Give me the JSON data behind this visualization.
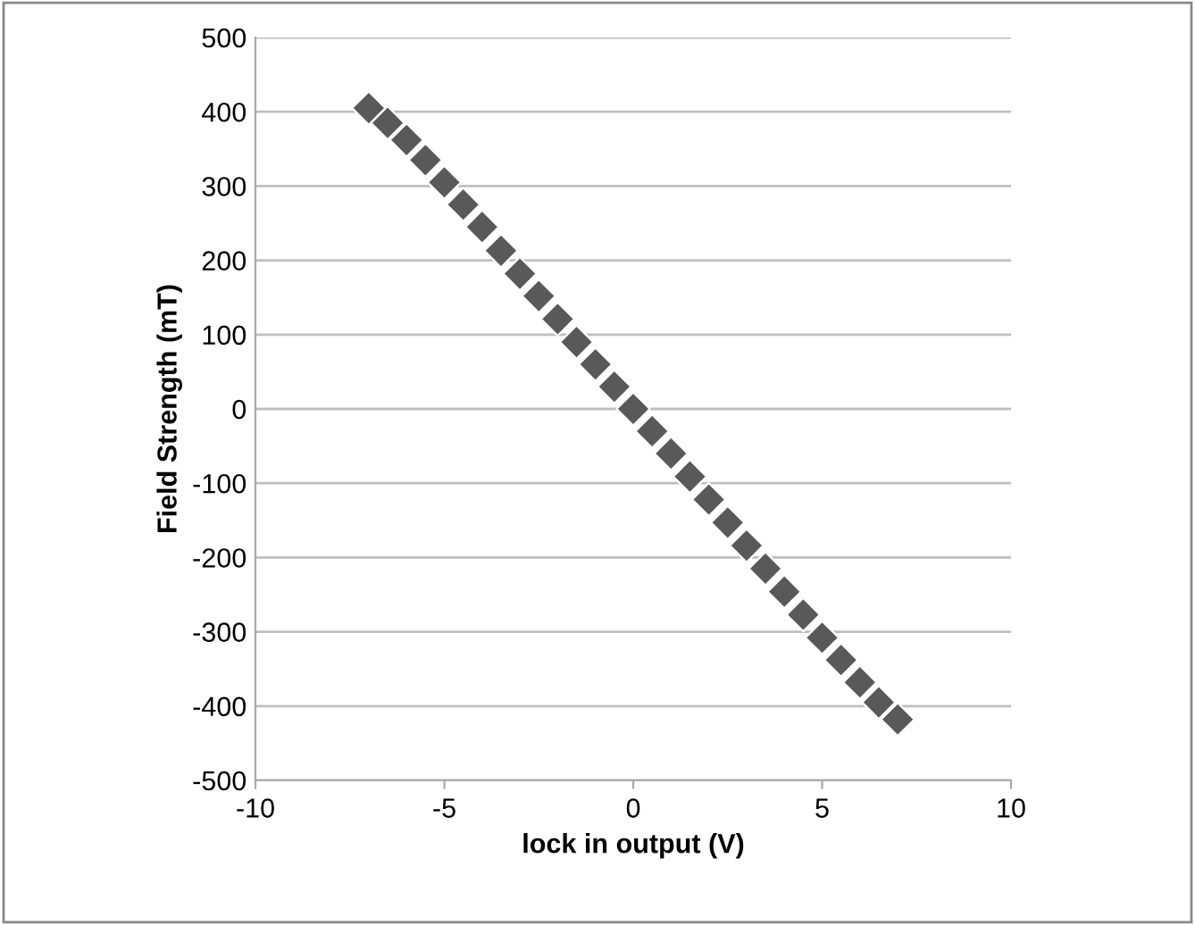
{
  "chart_data": {
    "type": "scatter",
    "xlabel": "lock in output (V)",
    "ylabel": "Field Strength (mT)",
    "x": [
      -7,
      -6.5,
      -6,
      -5.5,
      -5,
      -4.5,
      -4,
      -3.5,
      -3,
      -2.5,
      -2,
      -1.5,
      -1,
      -0.5,
      0,
      0.5,
      1,
      1.5,
      2,
      2.5,
      3,
      3.5,
      4,
      4.5,
      5,
      5.5,
      6,
      6.5,
      7
    ],
    "values": [
      405,
      385,
      362,
      335,
      305,
      275,
      245,
      213,
      182,
      152,
      121,
      90,
      60,
      30,
      0,
      -30,
      -60,
      -91,
      -122,
      -153,
      -184,
      -215,
      -246,
      -277,
      -308,
      -338,
      -368,
      -395,
      -418
    ],
    "color": "#595959",
    "marker": "diamond",
    "xlim": [
      -10,
      10
    ],
    "xticks": [
      -10,
      -5,
      0,
      5,
      10
    ],
    "ylim": [
      -500,
      500
    ],
    "yticks": [
      -500,
      -400,
      -300,
      -200,
      -100,
      0,
      100,
      200,
      300,
      400,
      500
    ],
    "grid": "y",
    "legend": false
  }
}
